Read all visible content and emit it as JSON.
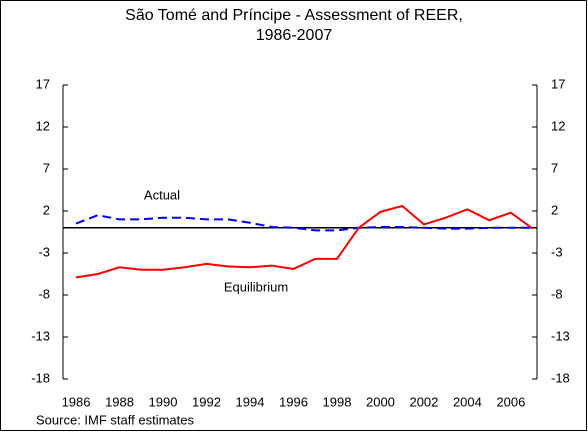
{
  "chart_data": {
    "type": "line",
    "title": "São Tomé and Príncipe - Assessment of REER, 1986-2007",
    "x": [
      1986,
      1987,
      1988,
      1989,
      1990,
      1991,
      1992,
      1993,
      1994,
      1995,
      1996,
      1997,
      1998,
      1999,
      2000,
      2001,
      2002,
      2003,
      2004,
      2005,
      2006,
      2007
    ],
    "xlim": [
      1985.4,
      2007.2
    ],
    "xticks": [
      1986,
      1988,
      1990,
      1992,
      1994,
      1996,
      1998,
      2000,
      2002,
      2004,
      2006
    ],
    "ylim": [
      -18,
      17
    ],
    "yticks": [
      -18,
      -13,
      -8,
      -3,
      2,
      7,
      12,
      17
    ],
    "y2lim": [
      -18,
      17
    ],
    "y2ticks": [
      -18,
      -13,
      -8,
      -3,
      2,
      7,
      12,
      17
    ],
    "series": [
      {
        "name": "Actual",
        "color": "#0000ff",
        "line_style": "dashed",
        "values": [
          0.5,
          1.5,
          1.0,
          1.0,
          1.2,
          1.2,
          1.0,
          1.0,
          0.6,
          0.1,
          0.0,
          -0.3,
          -0.3,
          0.0,
          0.1,
          0.1,
          0.0,
          -0.1,
          -0.1,
          0.0,
          0.0,
          0.0
        ]
      },
      {
        "name": "Equilibrium",
        "color": "#ff0000",
        "line_style": "solid",
        "values": [
          -5.9,
          -5.5,
          -4.7,
          -5.0,
          -5.0,
          -4.7,
          -4.3,
          -4.6,
          -4.7,
          -4.5,
          -4.9,
          -3.7,
          -3.7,
          0.0,
          1.9,
          2.6,
          0.4,
          1.2,
          2.2,
          0.9,
          1.8,
          -0.1
        ]
      }
    ],
    "source": "Source: IMF staff estimates"
  }
}
